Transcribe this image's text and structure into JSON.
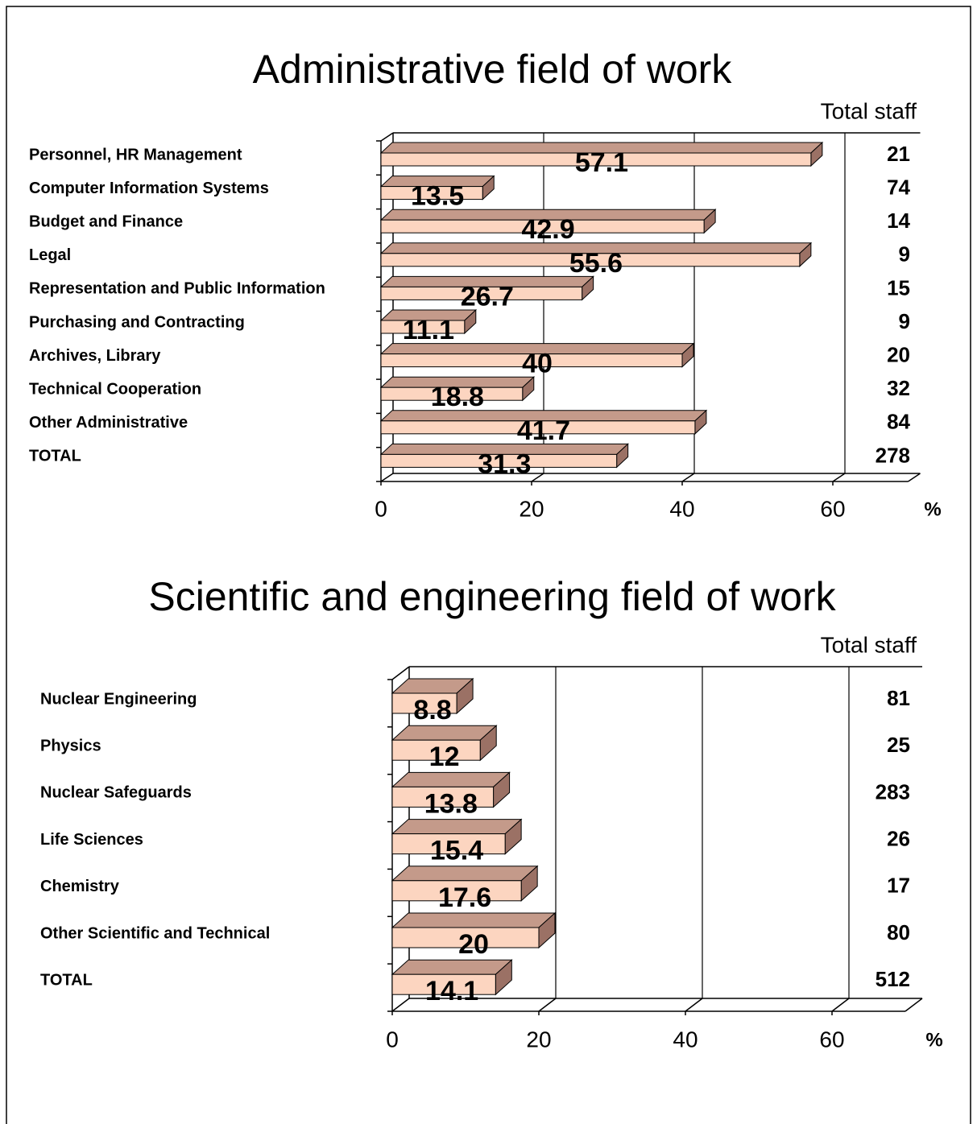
{
  "chart_data": [
    {
      "type": "bar",
      "title": "Administrative field of work",
      "categories": [
        "Personnel, HR  Management",
        "Computer Information Systems",
        "Budget and Finance",
        "Legal",
        "Representation and Public Information",
        "Purchasing and Contracting",
        "Archives, Library",
        "Technical Cooperation",
        "Other Administrative",
        "TOTAL"
      ],
      "values": [
        57.1,
        13.5,
        42.9,
        55.6,
        26.7,
        11.1,
        40,
        18.8,
        41.7,
        31.3
      ],
      "total_header": "Total staff",
      "totals": [
        21,
        74,
        14,
        9,
        15,
        9,
        20,
        32,
        84,
        278
      ],
      "x_label": "%",
      "xlim": [
        0,
        70
      ],
      "xticks": [
        0,
        20,
        40,
        60
      ],
      "grid": true,
      "color": "#fcd5c0"
    },
    {
      "type": "bar",
      "title": "Scientific and engineering field of work",
      "categories": [
        "Nuclear Engineering",
        "Physics",
        "Nuclear Safeguards",
        "Life Sciences",
        "Chemistry",
        "Other Scientific and Technical",
        "TOTAL"
      ],
      "values": [
        8.8,
        12,
        13.8,
        15.4,
        17.6,
        20,
        14.1
      ],
      "total_header": "Total staff",
      "totals": [
        81,
        25,
        283,
        26,
        17,
        80,
        512
      ],
      "x_label": "%",
      "xlim": [
        0,
        70
      ],
      "xticks": [
        0,
        20,
        40,
        60
      ],
      "grid": true,
      "color": "#fcd5c0"
    }
  ]
}
